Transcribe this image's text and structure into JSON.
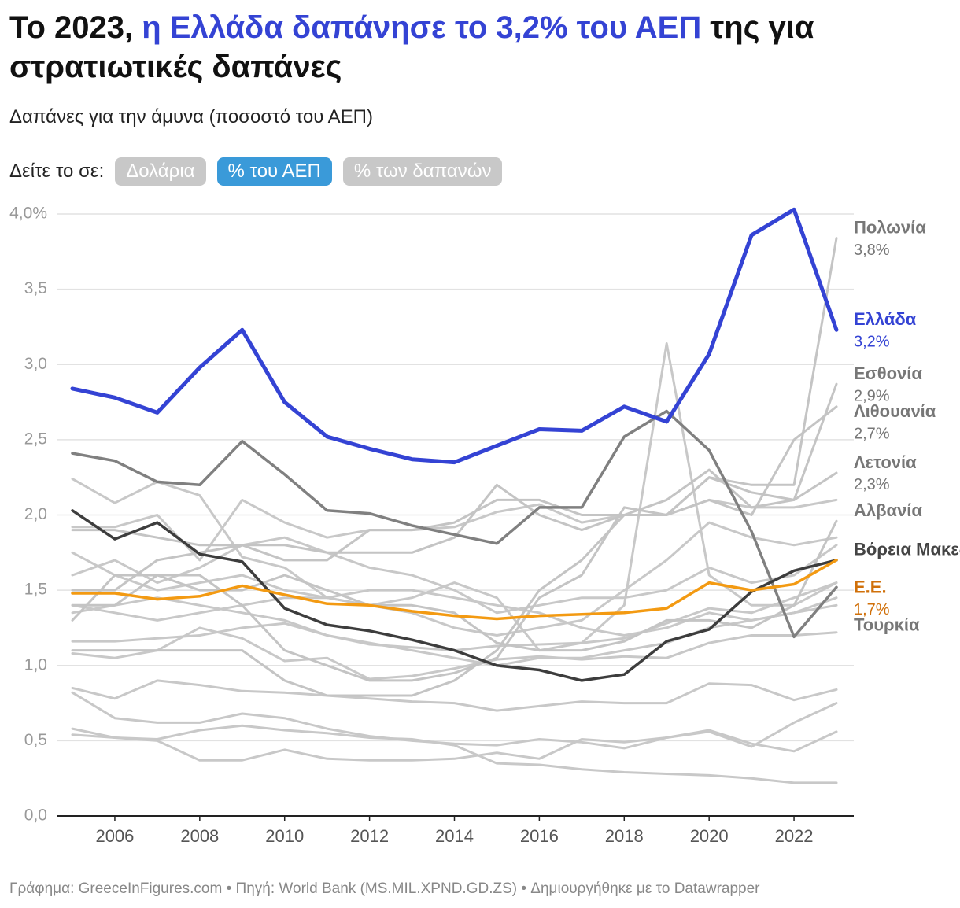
{
  "chart_data": {
    "type": "line",
    "title": [
      "Το 2023,",
      "η Ελλάδα δαπάνησε το 3,2% του ΑΕΠ",
      "της για στρατιωτικές δαπάνες"
    ],
    "subtitle": "Δαπάνες για την άμυνα (ποσοστό του ΑΕΠ)",
    "view_prompt": "Δείτε το σε:",
    "view_options": [
      "Δολάρια",
      "% του ΑΕΠ",
      "% των δαπανών"
    ],
    "active_option": 1,
    "footer": "Γράφημα: GreeceInFigures.com • Πηγή: World Bank (MS.MIL.XPND.GD.ZS) • Δημιουργήθηκε με το Datawrapper",
    "x": [
      2005,
      2006,
      2007,
      2008,
      2009,
      2010,
      2011,
      2012,
      2013,
      2014,
      2015,
      2016,
      2017,
      2018,
      2019,
      2020,
      2021,
      2022,
      2023
    ],
    "xlim": [
      2005,
      2023
    ],
    "xticks": [
      2006,
      2008,
      2010,
      2012,
      2014,
      2016,
      2018,
      2020,
      2022
    ],
    "ylim": [
      0,
      4
    ],
    "yticks": [
      {
        "value": 0,
        "label": "0,0"
      },
      {
        "value": 0.5,
        "label": "0,5"
      },
      {
        "value": 1,
        "label": "1,0"
      },
      {
        "value": 1.5,
        "label": "1,5"
      },
      {
        "value": 2,
        "label": "2,0"
      },
      {
        "value": 2.5,
        "label": "2,5"
      },
      {
        "value": 3,
        "label": "3,0"
      },
      {
        "value": 3.5,
        "label": "3,5"
      },
      {
        "value": 4,
        "label": "4,0%"
      }
    ],
    "grid": true,
    "series": [
      {
        "color": "#c8c8c8",
        "values": [
          0.82,
          0.65,
          0.62,
          0.62,
          0.68,
          0.65,
          0.58,
          0.53,
          0.5,
          0.48,
          0.47,
          0.51,
          0.49,
          0.45,
          0.52,
          0.57,
          0.48,
          0.43,
          0.56
        ]
      },
      {
        "color": "#c8c8c8",
        "values": [
          0.58,
          0.52,
          0.5,
          0.37,
          0.37,
          0.44,
          0.38,
          0.37,
          0.37,
          0.38,
          0.42,
          0.38,
          0.51,
          0.49,
          0.52,
          0.56,
          0.46,
          0.62,
          0.75
        ]
      },
      {
        "color": "#c8c8c8",
        "values": [
          0.54,
          0.52,
          0.51,
          0.57,
          0.6,
          0.57,
          0.55,
          0.52,
          0.51,
          0.47,
          0.35,
          0.34,
          0.31,
          0.29,
          0.28,
          0.27,
          0.25,
          0.22,
          0.22
        ]
      },
      {
        "color": "#c8c8c8",
        "values": [
          0.85,
          0.78,
          0.9,
          0.87,
          0.83,
          0.82,
          0.8,
          0.78,
          0.76,
          0.75,
          0.7,
          0.73,
          0.76,
          0.75,
          0.75,
          0.88,
          0.87,
          0.77,
          0.84
        ]
      },
      {
        "color": "#c8c8c8",
        "values": [
          1.08,
          1.05,
          1.1,
          1.25,
          1.18,
          1.03,
          1.05,
          0.91,
          0.93,
          0.98,
          1.04,
          1.06,
          1.04,
          1.06,
          1.05,
          1.15,
          1.2,
          1.2,
          1.22
        ]
      },
      {
        "color": "#c8c8c8",
        "values": [
          1.16,
          1.16,
          1.18,
          1.2,
          1.25,
          1.28,
          1.2,
          1.14,
          1.12,
          1.1,
          1.13,
          1.14,
          1.15,
          1.18,
          1.28,
          1.38,
          1.35,
          1.45,
          1.55
        ]
      },
      {
        "color": "#c8c8c8",
        "values": [
          1.6,
          1.7,
          1.55,
          1.65,
          1.8,
          1.85,
          1.75,
          1.65,
          1.6,
          1.5,
          1.35,
          1.4,
          1.45,
          1.45,
          1.5,
          1.65,
          1.55,
          1.6,
          1.8
        ]
      },
      {
        "color": "#c8c8c8",
        "values": [
          2.24,
          2.08,
          2.22,
          2.13,
          1.72,
          1.65,
          1.45,
          1.4,
          1.45,
          1.55,
          1.45,
          1.1,
          1.15,
          1.4,
          3.14,
          1.6,
          1.4,
          1.4,
          1.55
        ]
      },
      {
        "color": "#c8c8c8",
        "values": [
          1.35,
          1.4,
          1.45,
          1.4,
          1.35,
          1.3,
          1.2,
          1.15,
          1.1,
          1.05,
          1.0,
          1.05,
          1.05,
          1.1,
          1.15,
          1.25,
          1.3,
          1.35,
          1.45
        ]
      },
      {
        "color": "#c8c8c8",
        "values": [
          1.75,
          1.6,
          1.5,
          1.55,
          1.6,
          1.5,
          1.45,
          1.4,
          1.35,
          1.25,
          1.2,
          1.25,
          1.3,
          1.5,
          1.7,
          1.95,
          1.85,
          1.8,
          1.85
        ]
      },
      {
        "color": "#c8c8c8",
        "values": [
          1.92,
          1.92,
          2.0,
          1.7,
          2.1,
          1.95,
          1.85,
          1.9,
          1.9,
          1.92,
          2.02,
          2.07,
          1.95,
          2.0,
          2.0,
          2.1,
          2.05,
          2.05,
          2.1
        ]
      },
      {
        "color": "#c8c8c8",
        "values": [
          1.4,
          1.35,
          1.3,
          1.35,
          1.4,
          1.45,
          1.45,
          1.5,
          1.5,
          1.45,
          1.4,
          1.35,
          1.25,
          1.2,
          1.25,
          1.35,
          1.3,
          1.35,
          1.4
        ]
      },
      {
        "name": "Πολωνία",
        "color": "#c4c4c4",
        "label_color": "#777777",
        "values": [
          1.9,
          1.9,
          1.85,
          1.8,
          1.8,
          1.8,
          1.75,
          1.75,
          1.75,
          1.85,
          2.2,
          2.0,
          1.9,
          2.0,
          2.0,
          2.25,
          2.2,
          2.2,
          3.84
        ],
        "value_labels": [
          null,
          null,
          null,
          null,
          null,
          null,
          null,
          null,
          null,
          null,
          null,
          null,
          null,
          null,
          null,
          null,
          null,
          null,
          "3,8%"
        ]
      },
      {
        "name": "Εσθονία",
        "color": "#c4c4c4",
        "label_color": "#777777",
        "values": [
          1.5,
          1.5,
          1.7,
          1.75,
          1.8,
          1.7,
          1.7,
          1.9,
          1.9,
          1.95,
          2.1,
          2.1,
          2.0,
          2.0,
          2.1,
          2.3,
          2.05,
          2.1,
          2.87
        ],
        "value_labels": [
          null,
          null,
          null,
          null,
          null,
          null,
          null,
          null,
          null,
          null,
          null,
          null,
          null,
          null,
          null,
          null,
          null,
          null,
          "2,9%"
        ]
      },
      {
        "name": "Λιθουανία",
        "color": "#c4c4c4",
        "label_color": "#777777",
        "values": [
          1.1,
          1.1,
          1.1,
          1.1,
          1.1,
          0.9,
          0.8,
          0.8,
          0.8,
          0.9,
          1.1,
          1.5,
          1.7,
          2.0,
          2.0,
          2.1,
          2.0,
          2.5,
          2.72
        ],
        "value_labels": [
          null,
          null,
          null,
          null,
          null,
          null,
          null,
          null,
          null,
          null,
          null,
          null,
          null,
          null,
          null,
          null,
          null,
          null,
          "2,7%"
        ]
      },
      {
        "name": "Λετονία",
        "color": "#c4c4c4",
        "label_color": "#777777",
        "values": [
          1.3,
          1.6,
          1.6,
          1.6,
          1.4,
          1.1,
          1.0,
          0.9,
          0.9,
          0.95,
          1.05,
          1.45,
          1.6,
          2.05,
          2.0,
          2.25,
          2.15,
          2.1,
          2.28
        ],
        "value_labels": [
          null,
          null,
          null,
          null,
          null,
          null,
          null,
          null,
          null,
          null,
          null,
          null,
          null,
          null,
          null,
          null,
          null,
          null,
          "2,3%"
        ]
      },
      {
        "name": "Αλβανία",
        "color": "#c4c4c4",
        "label_color": "#777777",
        "values": [
          1.4,
          1.4,
          1.6,
          1.5,
          1.5,
          1.6,
          1.5,
          1.4,
          1.4,
          1.35,
          1.15,
          1.1,
          1.1,
          1.16,
          1.3,
          1.3,
          1.25,
          1.4,
          1.96
        ]
      },
      {
        "name": "Τουρκία",
        "color": "#808080",
        "label_color": "#777777",
        "values": [
          2.41,
          2.36,
          2.22,
          2.2,
          2.49,
          2.27,
          2.03,
          2.01,
          1.93,
          1.87,
          1.81,
          2.05,
          2.05,
          2.52,
          2.69,
          2.43,
          1.89,
          1.19,
          1.52
        ]
      },
      {
        "name": "Βόρεια Μακεδονία",
        "color": "#3d3d3d",
        "label_color": "#444444",
        "values": [
          2.03,
          1.84,
          1.95,
          1.74,
          1.69,
          1.38,
          1.27,
          1.23,
          1.17,
          1.1,
          1.0,
          0.97,
          0.9,
          0.94,
          1.16,
          1.24,
          1.49,
          1.63,
          1.7
        ]
      },
      {
        "name": "Ε.Ε.",
        "color": "#f39a12",
        "label_color": "#d0700a",
        "values": [
          1.48,
          1.48,
          1.44,
          1.46,
          1.53,
          1.47,
          1.41,
          1.4,
          1.36,
          1.33,
          1.31,
          1.33,
          1.34,
          1.35,
          1.38,
          1.55,
          1.5,
          1.54,
          1.7
        ],
        "value_labels": [
          null,
          null,
          null,
          null,
          null,
          null,
          null,
          null,
          null,
          null,
          null,
          null,
          null,
          null,
          null,
          null,
          null,
          null,
          "1,7%"
        ]
      },
      {
        "name": "Ελλάδα",
        "color": "#3443d4",
        "label_color": "#3443d4",
        "values": [
          2.84,
          2.78,
          2.68,
          2.98,
          3.23,
          2.75,
          2.52,
          2.44,
          2.37,
          2.35,
          2.46,
          2.57,
          2.56,
          2.72,
          2.62,
          3.07,
          3.86,
          4.03,
          3.23
        ],
        "value_labels": [
          null,
          null,
          null,
          null,
          null,
          null,
          null,
          null,
          null,
          null,
          null,
          null,
          null,
          null,
          null,
          null,
          null,
          null,
          "3,2%"
        ]
      }
    ]
  }
}
